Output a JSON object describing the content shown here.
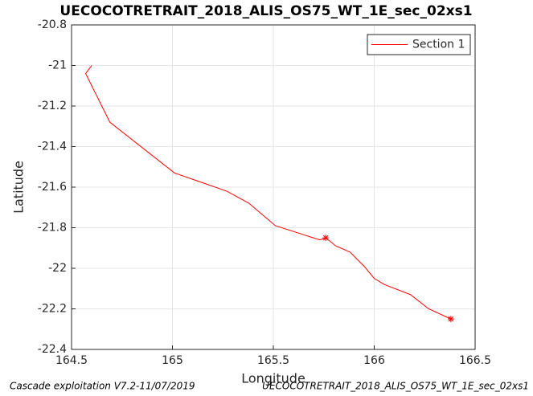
{
  "chart_data": {
    "type": "line",
    "title": "UECOCOTRETRAIT_2018_ALIS_OS75_WT_1E_sec_02xs1",
    "x_label": "Longitude",
    "y_label": "Latitude",
    "footer_left": "Cascade exploitation V7.2-11/07/2019",
    "footer_right": "UECOCOTRETRAIT_2018_ALIS_OS75_WT_1E_sec_02xs1",
    "xlim": [
      164.5,
      166.5
    ],
    "xticks": [
      164.5,
      165,
      165.5,
      166,
      166.5
    ],
    "ylim": [
      -22.4,
      -20.8
    ],
    "yticks": [
      -22.4,
      -22.2,
      -22,
      -21.8,
      -21.6,
      -21.4,
      -21.2,
      -21,
      -20.8
    ],
    "grid": true,
    "legend": "upper right",
    "series": [
      {
        "name": "Section 1",
        "color": "#ff0000",
        "x": [
          164.6,
          164.57,
          164.69,
          165.01,
          165.27,
          165.38,
          165.51,
          165.73,
          165.76,
          165.81,
          165.88,
          165.95,
          166.0,
          166.05,
          166.18,
          166.27,
          166.38
        ],
        "values": [
          -21.0,
          -21.04,
          -21.28,
          -21.53,
          -21.62,
          -21.68,
          -21.79,
          -21.86,
          -21.85,
          -21.89,
          -21.92,
          -21.99,
          -22.05,
          -22.08,
          -22.13,
          -22.2,
          -22.25
        ]
      }
    ],
    "markers": {
      "color": "#ff0000",
      "x": [
        165.76,
        166.38
      ],
      "values": [
        -21.85,
        -22.25
      ]
    }
  }
}
